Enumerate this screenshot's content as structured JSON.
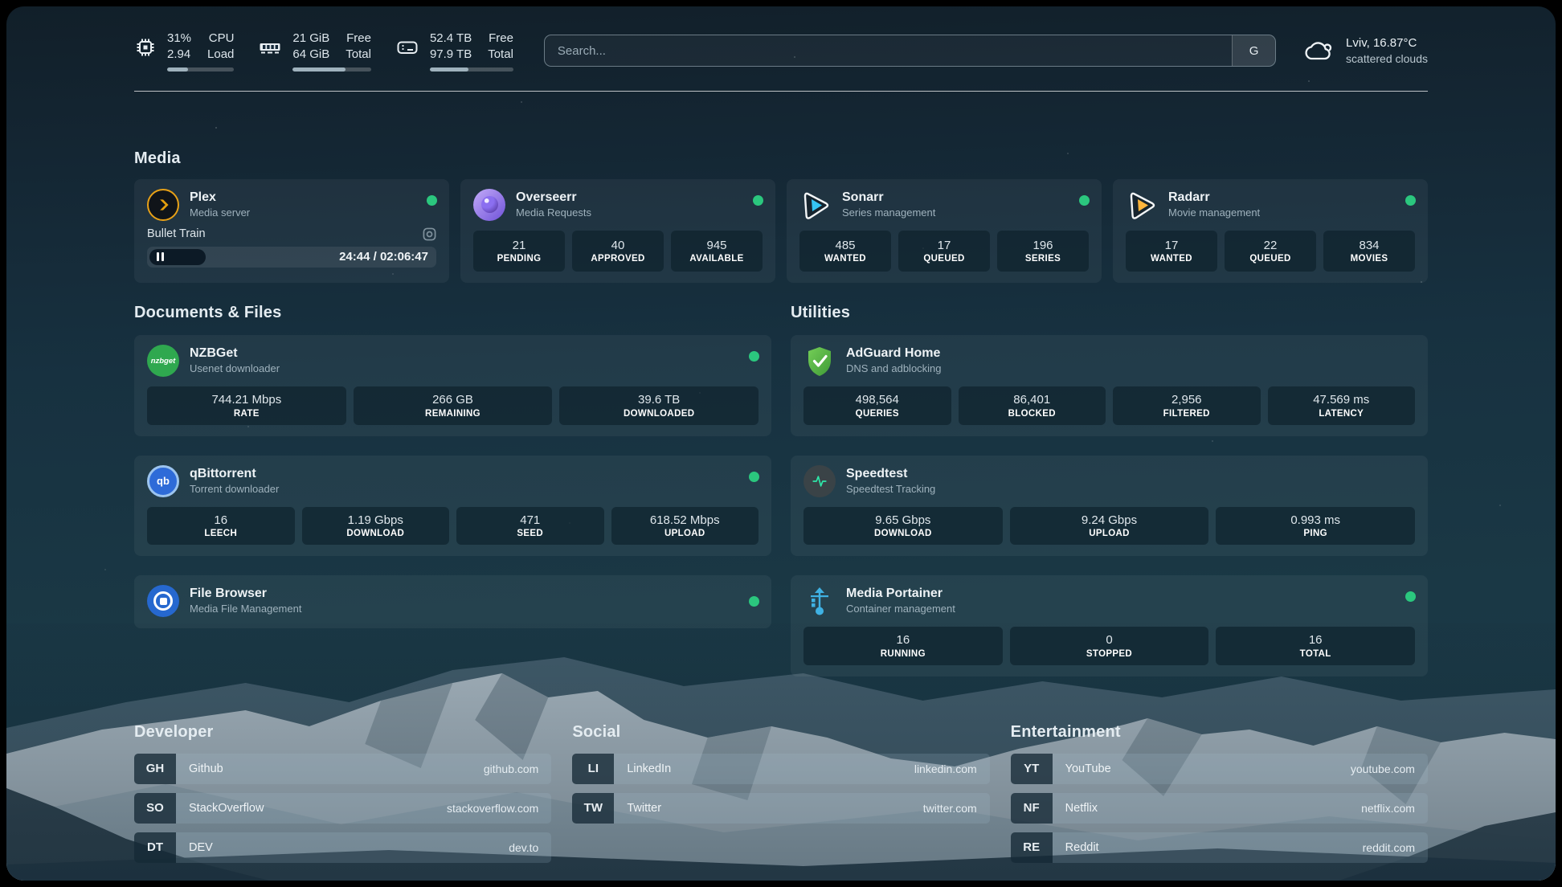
{
  "topbar": {
    "cpu": {
      "percent": "31%",
      "load": "2.94",
      "label1": "CPU",
      "label2": "Load",
      "bar": 31
    },
    "memory": {
      "free": "21 GiB",
      "total": "64 GiB",
      "label1": "Free",
      "label2": "Total",
      "bar": 67
    },
    "disk": {
      "free": "52.4 TB",
      "total": "97.9 TB",
      "label1": "Free",
      "label2": "Total",
      "bar": 46
    },
    "search": {
      "placeholder": "Search...",
      "button_label": "G"
    },
    "weather": {
      "summary": "Lviv, 16.87°C",
      "condition": "scattered clouds"
    }
  },
  "media": {
    "title": "Media",
    "plex": {
      "name": "Plex",
      "desc": "Media server",
      "now_playing": "Bullet Train",
      "time": "24:44 / 02:06:47"
    },
    "overseerr": {
      "name": "Overseerr",
      "desc": "Media Requests",
      "stats": [
        {
          "value": "21",
          "label": "PENDING"
        },
        {
          "value": "40",
          "label": "APPROVED"
        },
        {
          "value": "945",
          "label": "AVAILABLE"
        }
      ]
    },
    "sonarr": {
      "name": "Sonarr",
      "desc": "Series management",
      "stats": [
        {
          "value": "485",
          "label": "WANTED"
        },
        {
          "value": "17",
          "label": "QUEUED"
        },
        {
          "value": "196",
          "label": "SERIES"
        }
      ]
    },
    "radarr": {
      "name": "Radarr",
      "desc": "Movie management",
      "stats": [
        {
          "value": "17",
          "label": "WANTED"
        },
        {
          "value": "22",
          "label": "QUEUED"
        },
        {
          "value": "834",
          "label": "MOVIES"
        }
      ]
    }
  },
  "documents": {
    "title": "Documents & Files",
    "nzbget": {
      "name": "NZBGet",
      "desc": "Usenet downloader",
      "icon_text": "nzbget",
      "stats": [
        {
          "value": "744.21 Mbps",
          "label": "RATE"
        },
        {
          "value": "266 GB",
          "label": "REMAINING"
        },
        {
          "value": "39.6 TB",
          "label": "DOWNLOADED"
        }
      ]
    },
    "qbittorrent": {
      "name": "qBittorrent",
      "desc": "Torrent downloader",
      "icon_text": "qb",
      "stats": [
        {
          "value": "16",
          "label": "LEECH"
        },
        {
          "value": "1.19 Gbps",
          "label": "DOWNLOAD"
        },
        {
          "value": "471",
          "label": "SEED"
        },
        {
          "value": "618.52 Mbps",
          "label": "UPLOAD"
        }
      ]
    },
    "filebrowser": {
      "name": "File Browser",
      "desc": "Media File Management"
    }
  },
  "utilities": {
    "title": "Utilities",
    "adguard": {
      "name": "AdGuard Home",
      "desc": "DNS and adblocking",
      "stats": [
        {
          "value": "498,564",
          "label": "QUERIES"
        },
        {
          "value": "86,401",
          "label": "BLOCKED"
        },
        {
          "value": "2,956",
          "label": "FILTERED"
        },
        {
          "value": "47.569 ms",
          "label": "LATENCY"
        }
      ]
    },
    "speedtest": {
      "name": "Speedtest",
      "desc": "Speedtest Tracking",
      "stats": [
        {
          "value": "9.65 Gbps",
          "label": "DOWNLOAD"
        },
        {
          "value": "9.24 Gbps",
          "label": "UPLOAD"
        },
        {
          "value": "0.993 ms",
          "label": "PING"
        }
      ]
    },
    "portainer": {
      "name": "Media Portainer",
      "desc": "Container management",
      "stats": [
        {
          "value": "16",
          "label": "RUNNING"
        },
        {
          "value": "0",
          "label": "STOPPED"
        },
        {
          "value": "16",
          "label": "TOTAL"
        }
      ]
    }
  },
  "bookmarks": [
    {
      "title": "Developer",
      "items": [
        {
          "abbr": "GH",
          "name": "Github",
          "url": "github.com"
        },
        {
          "abbr": "SO",
          "name": "StackOverflow",
          "url": "stackoverflow.com"
        },
        {
          "abbr": "DT",
          "name": "DEV",
          "url": "dev.to"
        }
      ]
    },
    {
      "title": "Social",
      "items": [
        {
          "abbr": "LI",
          "name": "LinkedIn",
          "url": "linkedin.com"
        },
        {
          "abbr": "TW",
          "name": "Twitter",
          "url": "twitter.com"
        }
      ]
    },
    {
      "title": "Entertainment",
      "items": [
        {
          "abbr": "YT",
          "name": "YouTube",
          "url": "youtube.com"
        },
        {
          "abbr": "NF",
          "name": "Netflix",
          "url": "netflix.com"
        },
        {
          "abbr": "RE",
          "name": "Reddit",
          "url": "reddit.com"
        }
      ]
    }
  ],
  "colors": {
    "status_online": "#2bc77e",
    "plex_accent": "#e5a00d",
    "sonarr_accent": "#35c5f4",
    "radarr_accent": "#ffb53c",
    "nzbget_green": "#2fa84f",
    "qbittorrent_blue": "#2e6bd8",
    "adguard_green": "#5fb338",
    "speedtest_green": "#2ee6a8",
    "filebrowser_blue": "#2668cf",
    "portainer_blue": "#3fb1e3"
  }
}
